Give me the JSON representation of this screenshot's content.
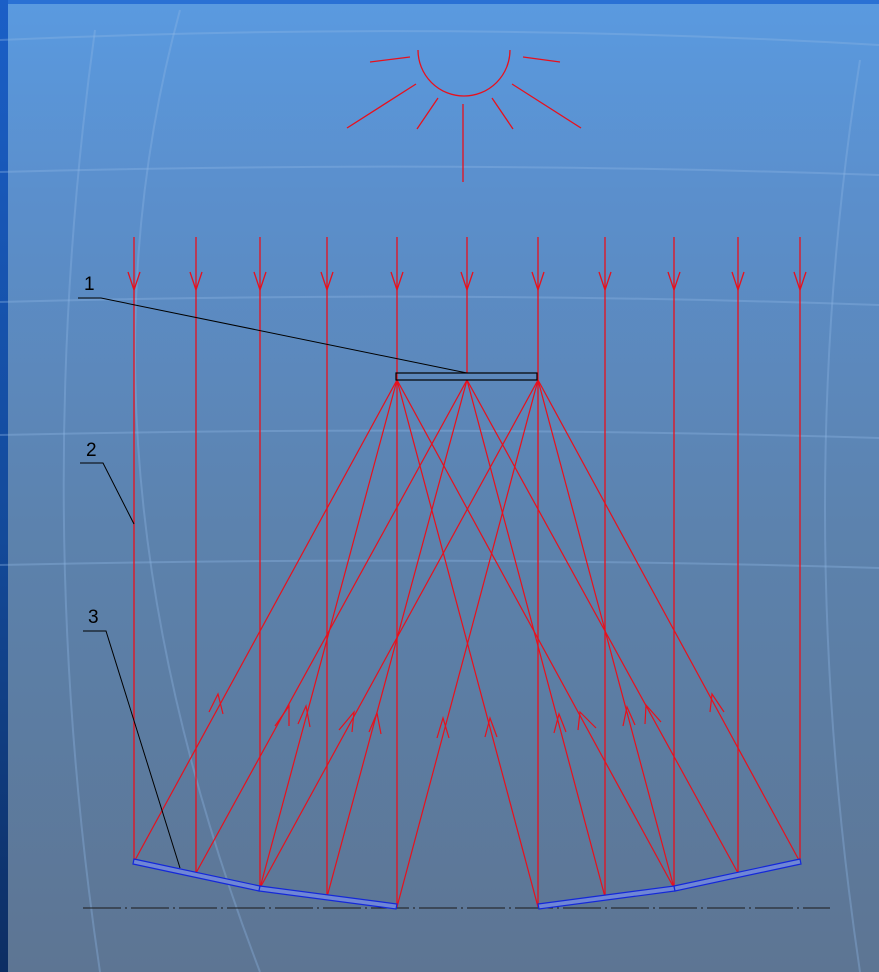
{
  "labels": {
    "one": "1",
    "two": "2",
    "three": "3"
  },
  "colors": {
    "ray": "#e8101c",
    "mirror": "#1428d8",
    "mirror_fill": "#6f86d6",
    "leader": "#000000",
    "axis": "#1a1a1a",
    "receiver": "#000000"
  },
  "icons": {
    "sun": "sun-icon"
  }
}
